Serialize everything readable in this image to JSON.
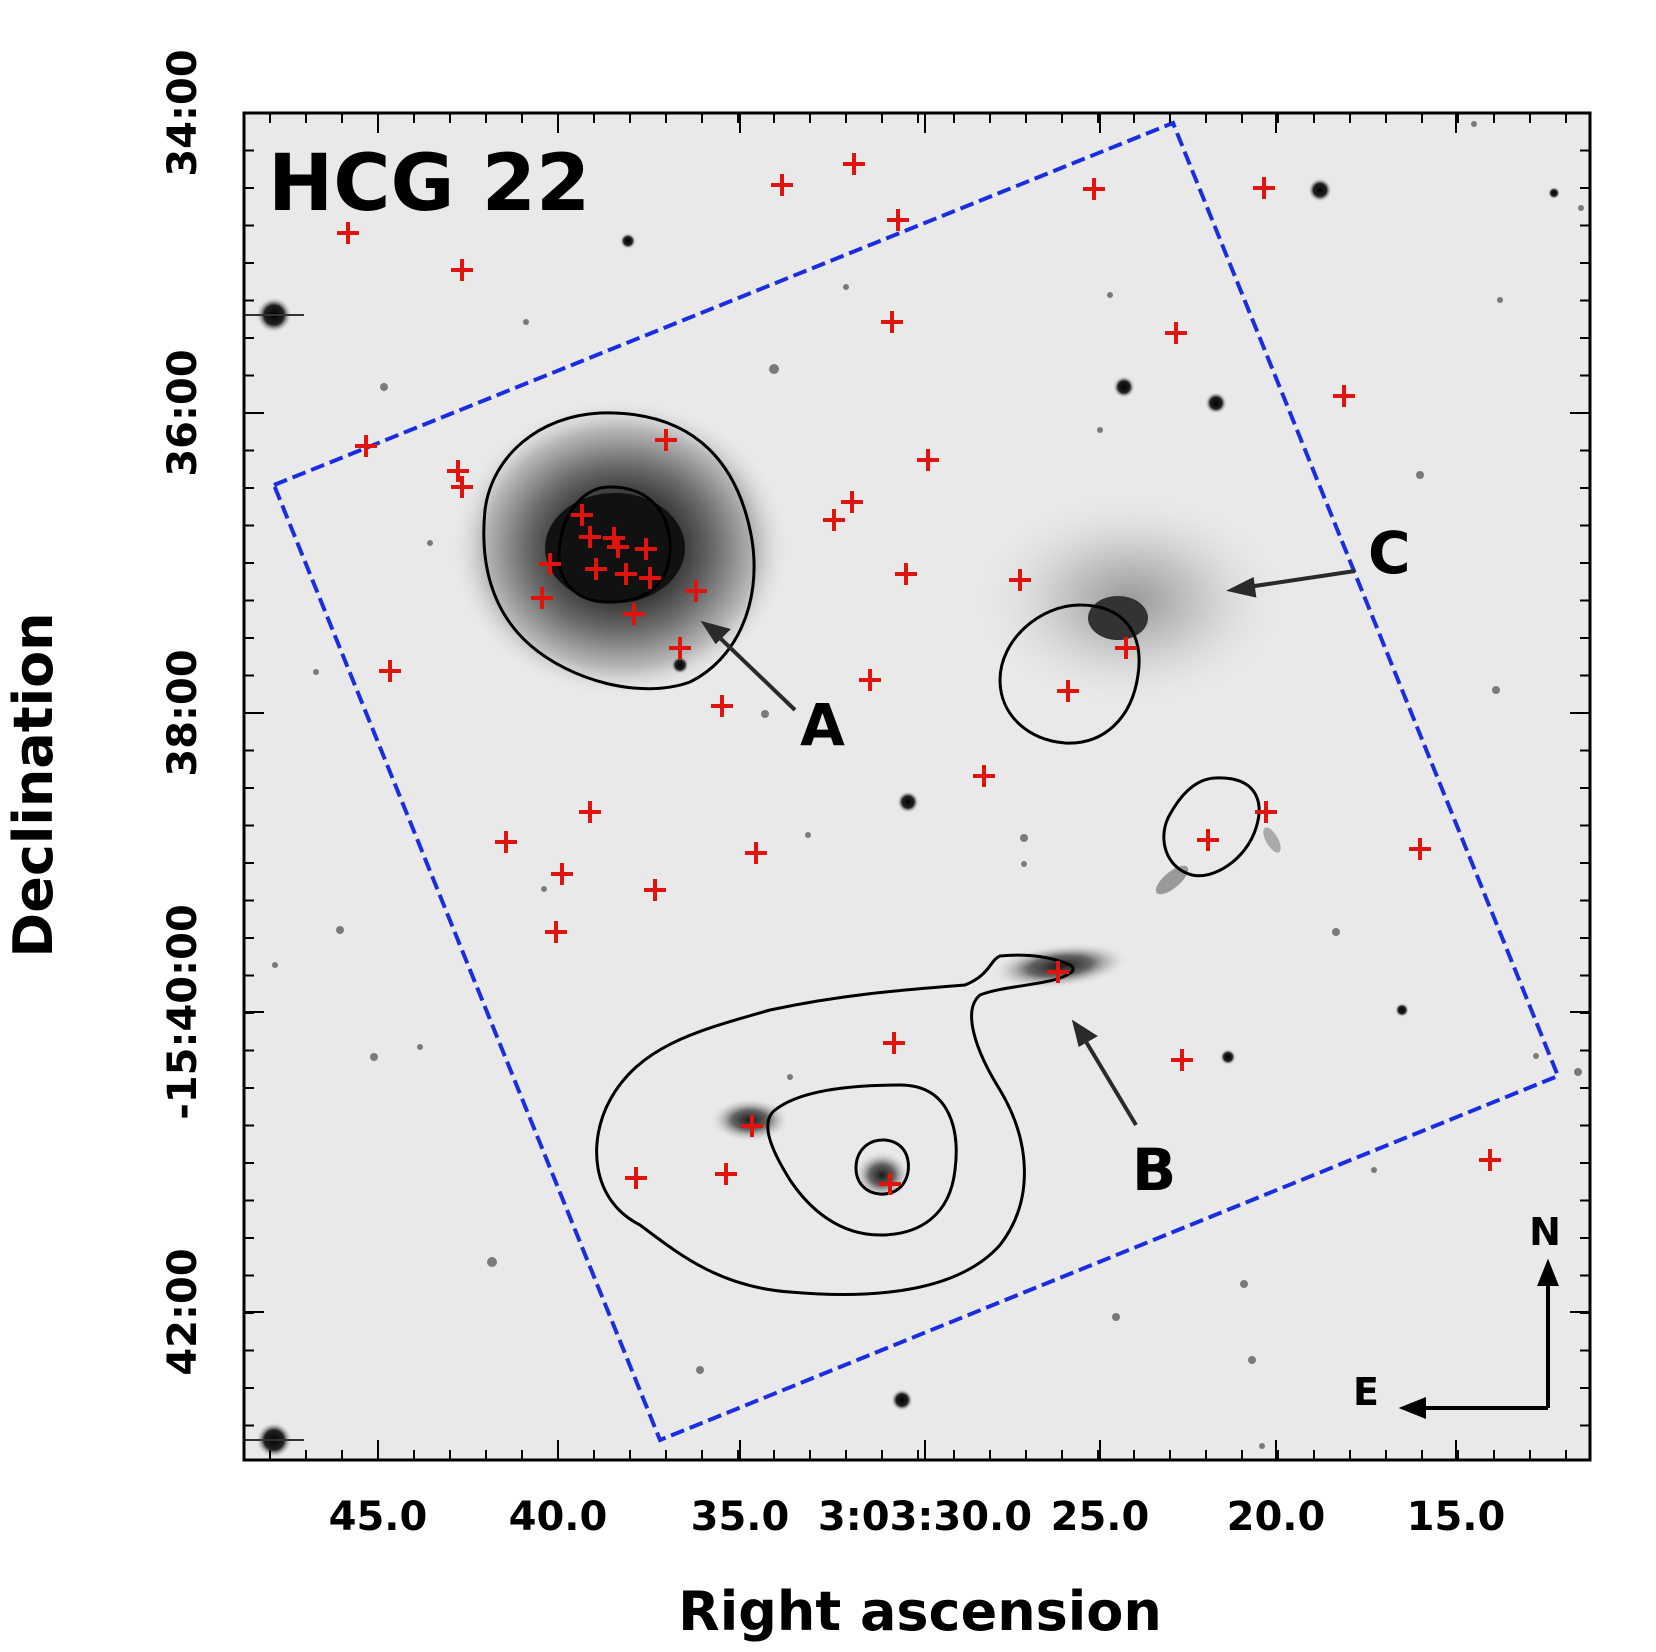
{
  "figure": {
    "title": "HCG 22",
    "xlabel": "Right ascension",
    "ylabel": "Declination",
    "x_tick_labels": [
      "45.0",
      "40.0",
      "35.0",
      "3:03:30.0",
      "25.0",
      "20.0",
      "15.0"
    ],
    "y_tick_labels": [
      "34:00",
      "36:00",
      "38:00",
      "-15:40:00",
      "42:00"
    ],
    "galaxy_labels": [
      "A",
      "B",
      "C"
    ],
    "compass": {
      "north": "N",
      "east": "E"
    }
  },
  "colors": {
    "background": "#ffffff",
    "sky": "#e9e9e9",
    "contour": "#000000",
    "footprint": "#1a2ee0",
    "markers": "#e0140f",
    "arrows": "#2a2a2a"
  },
  "icons": {
    "marker": "red-cross-marker",
    "compass": "compass-arrows-icon"
  }
}
